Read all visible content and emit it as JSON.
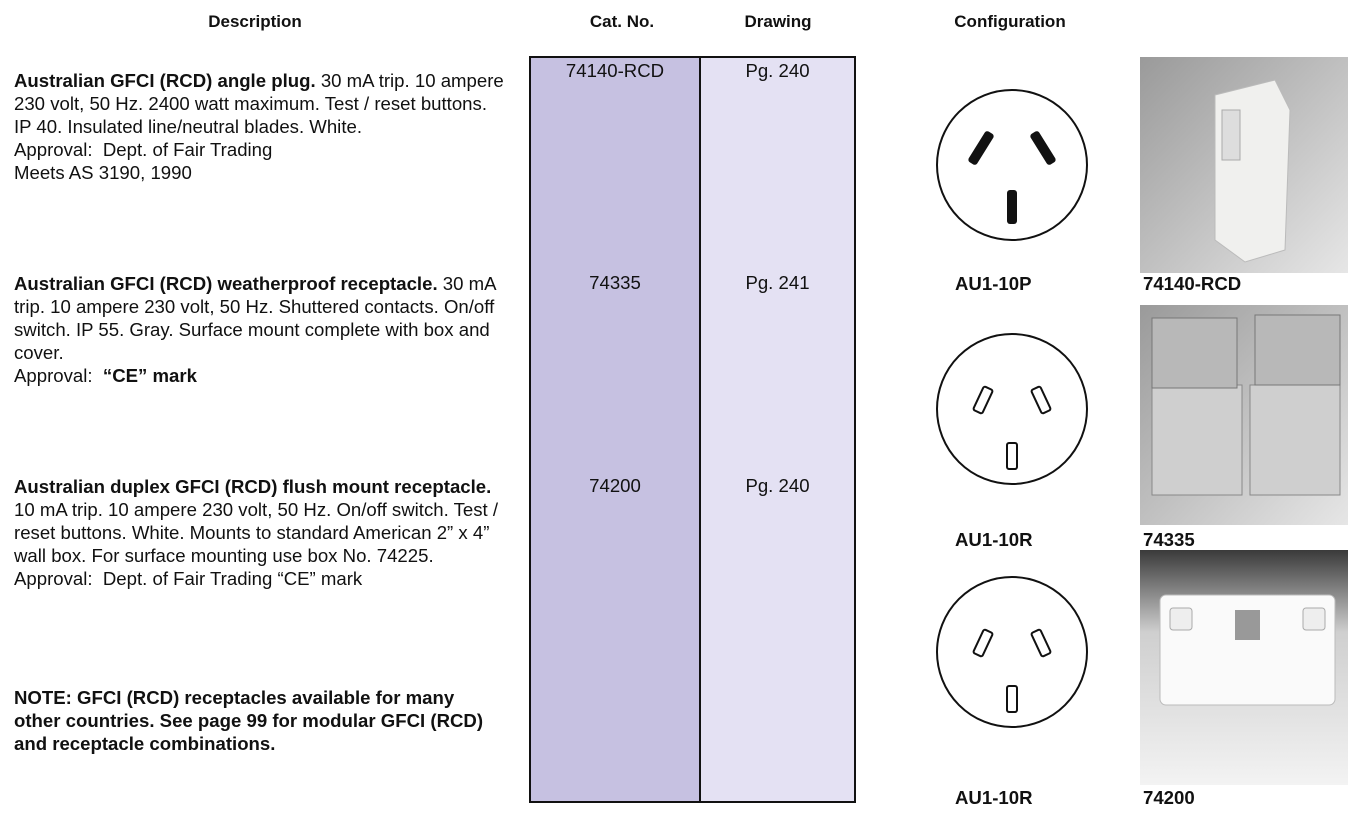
{
  "headers": [
    "Description",
    "Cat. No.",
    "Drawing",
    "Configuration"
  ],
  "rows": [
    {
      "title": "Australian GFCI (RCD) angle plug.",
      "body": "30 mA trip. 10 ampere 230 volt, 50 Hz. 2400 watt maximum. Test / reset buttons. IP 40. Insulated line/neutral blades. White.",
      "approval": [
        "Approval:  Dept. of Fair Trading",
        "Meets AS 3190, 1990"
      ],
      "cat_no": "74140-RCD",
      "drawing": "Pg. 240",
      "configuration": "AU1-10P",
      "photo_caption": "74140-RCD"
    },
    {
      "title": "Australian GFCI (RCD) weatherproof receptacle.",
      "body": "30 mA trip. 10 ampere 230 volt, 50 Hz. Shuttered contacts. On/off switch. IP 55. Gray. Surface mount complete with box and cover.",
      "approval": [
        "Approval:",
        "“CE” mark"
      ],
      "cat_no": "74335",
      "drawing": "Pg. 241",
      "configuration": "AU1-10R",
      "photo_caption": "74335"
    },
    {
      "title": "Australian duplex GFCI (RCD) flush mount receptacle.",
      "body": "10 mA trip. 10 ampere 230 volt, 50 Hz. On/off switch. Test / reset buttons. White. Mounts to standard American 2” x 4” wall box. For surface mounting use box No. 74225.",
      "approval": [
        "Approval:  Dept. of Fair Trading “CE” mark"
      ],
      "cat_no": "74200",
      "drawing": "Pg. 240",
      "configuration": "AU1-10R",
      "photo_caption": "74200"
    }
  ],
  "note": "NOTE: GFCI (RCD) receptacles available for many other countries. See page 99 for modular GFCI (RCD) and receptacle combinations."
}
